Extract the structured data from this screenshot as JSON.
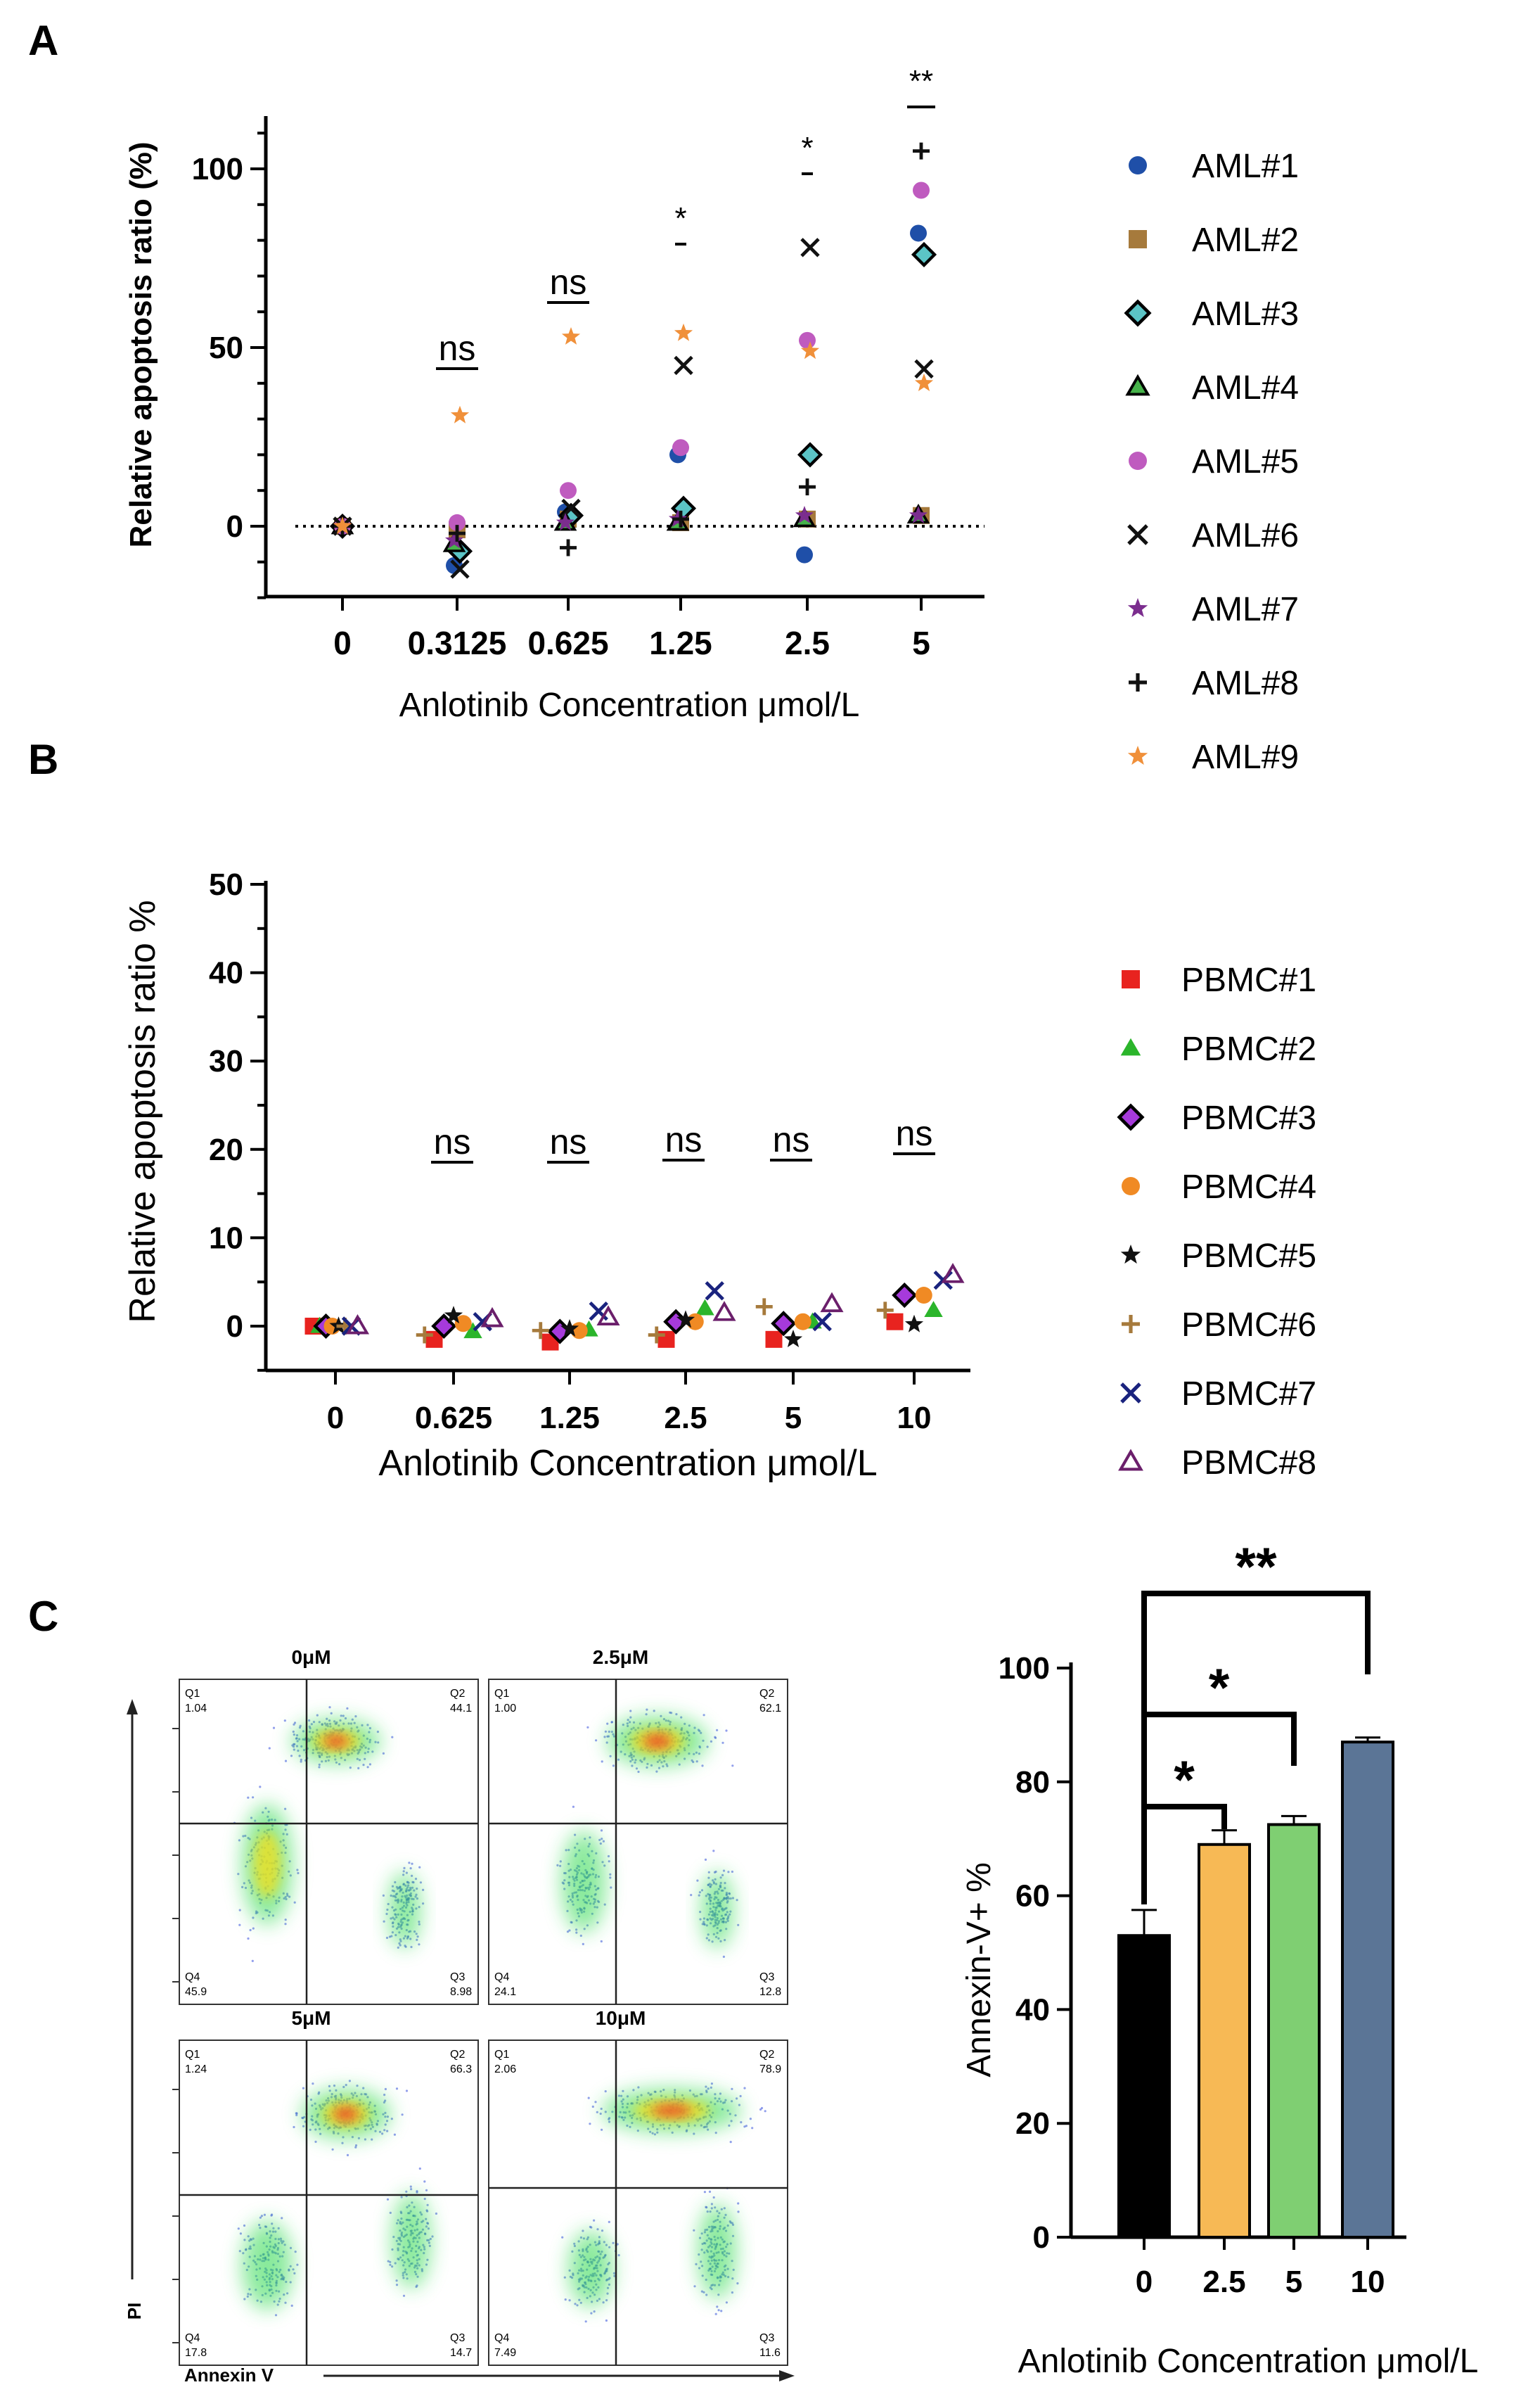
{
  "chart_data": [
    {
      "panel": "A",
      "type": "scatter",
      "xlabel": "Anlotinib Concentration μmol/L",
      "ylabel": "Relative apoptosis  ratio (%)",
      "categories": [
        "0",
        "0.3125",
        "0.625",
        "1.25",
        "2.5",
        "5"
      ],
      "ylim": [
        -20,
        110
      ],
      "yticks": [
        0,
        50,
        100
      ],
      "zero_line": "dotted",
      "legend_position": "right",
      "significance": [
        "ns",
        "ns",
        "*",
        "*",
        "**"
      ],
      "series": [
        {
          "name": "AML#1",
          "marker": "circle",
          "color": "#1f4fa8",
          "values": [
            0,
            -11,
            4,
            20,
            -8,
            82
          ]
        },
        {
          "name": "AML#2",
          "marker": "square",
          "color": "#a67a3c",
          "values": [
            0,
            -1,
            2,
            1,
            2,
            3
          ]
        },
        {
          "name": "AML#3",
          "marker": "diamond",
          "color": "#5bc4c6",
          "values": [
            0,
            -7,
            3,
            5,
            20,
            76
          ]
        },
        {
          "name": "AML#4",
          "marker": "triangle",
          "color": "#46b34a",
          "values": [
            0,
            -5,
            1,
            1,
            2,
            3
          ]
        },
        {
          "name": "AML#5",
          "marker": "circle",
          "color": "#bf5bbf",
          "values": [
            0,
            1,
            10,
            22,
            52,
            94
          ]
        },
        {
          "name": "AML#6",
          "marker": "x",
          "color": "#111111",
          "values": [
            0,
            -12,
            5,
            45,
            78,
            44
          ]
        },
        {
          "name": "AML#7",
          "marker": "star",
          "color": "#7b2d8e",
          "values": [
            0,
            -4,
            1,
            2,
            3,
            3
          ]
        },
        {
          "name": "AML#8",
          "marker": "plus",
          "color": "#111111",
          "values": [
            0,
            -2,
            -6,
            2,
            11,
            105
          ]
        },
        {
          "name": "AML#9",
          "marker": "star",
          "color": "#f0903a",
          "values": [
            0,
            31,
            53,
            54,
            49,
            40
          ]
        }
      ]
    },
    {
      "panel": "B",
      "type": "scatter",
      "xlabel": "Anlotinib Concentration μmol/L",
      "ylabel": "Relative apoptosis ratio %",
      "categories": [
        "0",
        "0.625",
        "1.25",
        "2.5",
        "5",
        "10"
      ],
      "ylim": [
        -5,
        50
      ],
      "yticks": [
        0,
        10,
        20,
        30,
        40,
        50
      ],
      "legend_position": "right",
      "significance": [
        "ns",
        "ns",
        "ns",
        "ns",
        "ns"
      ],
      "series": [
        {
          "name": "PBMC#1",
          "marker": "square",
          "color": "#e8231f",
          "values": [
            0,
            -1.5,
            -1.8,
            -1.5,
            -1.5,
            0.5
          ]
        },
        {
          "name": "PBMC#2",
          "marker": "triangle",
          "color": "#2bb52b",
          "values": [
            0,
            -0.6,
            -0.4,
            2,
            0.5,
            1.8
          ]
        },
        {
          "name": "PBMC#3",
          "marker": "diamond",
          "color": "#a63adb",
          "values": [
            0,
            0,
            -0.6,
            0.5,
            0.3,
            3.5
          ]
        },
        {
          "name": "PBMC#4",
          "marker": "circle",
          "color": "#f08a24",
          "values": [
            0,
            0.3,
            -0.5,
            0.5,
            0.5,
            3.5
          ]
        },
        {
          "name": "PBMC#5",
          "marker": "star",
          "color": "#111111",
          "values": [
            0,
            1.2,
            -0.3,
            0.7,
            -1.5,
            0.2
          ]
        },
        {
          "name": "PBMC#6",
          "marker": "plus",
          "color": "#a67a3c",
          "values": [
            0,
            -1,
            -0.5,
            -1,
            2.2,
            1.8
          ]
        },
        {
          "name": "PBMC#7",
          "marker": "x",
          "color": "#1a237e",
          "values": [
            0,
            0.5,
            1.7,
            4,
            0.5,
            5.2
          ]
        },
        {
          "name": "PBMC#8",
          "marker": "triangle-open",
          "color": "#6b1f6b",
          "values": [
            0,
            0.8,
            1,
            1.5,
            2.5,
            5.8
          ]
        }
      ]
    },
    {
      "panel": "C",
      "type": "bar",
      "xlabel": "Anlotinib Concentration μmol/L",
      "ylabel": "Annexin-V+ %",
      "categories": [
        "0",
        "2.5",
        "5",
        "10"
      ],
      "values": [
        53,
        69,
        72.5,
        87
      ],
      "errors": [
        4.5,
        2.5,
        1.5,
        0.8
      ],
      "colors": [
        "#000000",
        "#f7b955",
        "#7fcf72",
        "#5b7596"
      ],
      "ylim": [
        0,
        100
      ],
      "yticks": [
        0,
        20,
        40,
        60,
        80,
        100
      ],
      "comparisons": [
        {
          "from": "0",
          "to": "2.5",
          "label": "*"
        },
        {
          "from": "0",
          "to": "5",
          "label": "*"
        },
        {
          "from": "0",
          "to": "10",
          "label": "**"
        }
      ]
    }
  ],
  "panel_labels": {
    "a": "A",
    "b": "B",
    "c": "C"
  },
  "flow": {
    "y_axis_label": "PI",
    "x_axis_label": "Annexin V",
    "plots": [
      {
        "title": "0μM",
        "q1": "Q1",
        "q1v": "1.04",
        "q2": "Q2",
        "q2v": "44.1",
        "q3": "Q3",
        "q3v": "8.98",
        "q4": "Q4",
        "q4v": "45.9"
      },
      {
        "title": "2.5μM",
        "q1": "Q1",
        "q1v": "1.00",
        "q2": "Q2",
        "q2v": "62.1",
        "q3": "Q3",
        "q3v": "12.8",
        "q4": "Q4",
        "q4v": "24.1"
      },
      {
        "title": "5μM",
        "q1": "Q1",
        "q1v": "1.24",
        "q2": "Q2",
        "q2v": "66.3",
        "q3": "Q3",
        "q3v": "14.7",
        "q4": "Q4",
        "q4v": "17.8"
      },
      {
        "title": "10μM",
        "q1": "Q1",
        "q1v": "2.06",
        "q2": "Q2",
        "q2v": "78.9",
        "q3": "Q3",
        "q3v": "11.6",
        "q4": "Q4",
        "q4v": "7.49"
      }
    ]
  }
}
